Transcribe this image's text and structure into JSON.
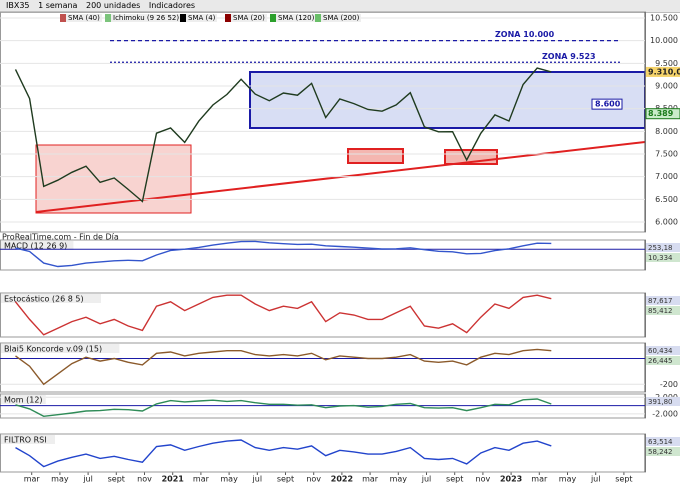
{
  "toolbar": {
    "symbol": "IBX35",
    "period": "1 semana",
    "units": "200 unidades",
    "indicators": "Indicadores",
    "legend": [
      {
        "name": "SMA (40)",
        "color": "#c0504d"
      },
      {
        "name": "Ichimoku (9 26 52)",
        "color": "#7cc47c"
      },
      {
        "name": "SMA (4)",
        "color": "#000000"
      },
      {
        "name": "SMA (20)",
        "color": "#8b0000"
      },
      {
        "name": "SMA (120)",
        "color": "#2ca02c"
      },
      {
        "name": "SMA (200)",
        "color": "#6abf69"
      }
    ]
  },
  "chart_data": [
    {
      "type": "line",
      "source": "ProRealTime.com - Fin de Día",
      "x": [
        "2020-01",
        "2020-02",
        "2020-03",
        "2020-04",
        "2020-05",
        "2020-06",
        "2020-07",
        "2020-08",
        "2020-09",
        "2020-10",
        "2020-11",
        "2020-12",
        "2021-01",
        "2021-02",
        "2021-03",
        "2021-04",
        "2021-05",
        "2021-06",
        "2021-07",
        "2021-08",
        "2021-09",
        "2021-10",
        "2021-11",
        "2021-12",
        "2022-01",
        "2022-02",
        "2022-03",
        "2022-04",
        "2022-05",
        "2022-06",
        "2022-07",
        "2022-08",
        "2022-09",
        "2022-10",
        "2022-11",
        "2022-12",
        "2023-01",
        "2023-02",
        "2023-03"
      ],
      "series": [
        {
          "name": "Precio",
          "color": "#1f3b1f",
          "values": [
            9367,
            8723,
            6785,
            6922,
            7096,
            7231,
            6877,
            6970,
            6717,
            6452,
            7960,
            8074,
            7757,
            8225,
            8580,
            8815,
            9148,
            8821,
            8675,
            8846,
            8796,
            9057,
            8306,
            8714,
            8612,
            8482,
            8445,
            8584,
            8852,
            8099,
            7989,
            7993,
            7367,
            7956,
            8363,
            8229,
            9034,
            9394,
            9310
          ]
        }
      ],
      "ylim": [
        5780,
        10632
      ],
      "yticks": [
        {
          "value": 6000,
          "label": "6.000"
        },
        {
          "value": 6500,
          "label": "6.500"
        },
        {
          "value": 7000,
          "label": "7.000"
        },
        {
          "value": 7500,
          "label": "7.500"
        },
        {
          "value": 8000,
          "label": "8.000"
        },
        {
          "value": 8500,
          "label": "8.500"
        },
        {
          "value": 9000,
          "label": "9.000"
        },
        {
          "value": 9500,
          "label": "9.500"
        },
        {
          "value": 10000,
          "label": "10.000"
        },
        {
          "value": 10500,
          "label": "10.500"
        }
      ],
      "xticks": [
        {
          "value": "2020-03",
          "label": "mar"
        },
        {
          "value": "2020-05",
          "label": "may"
        },
        {
          "value": "2020-07",
          "label": "jul"
        },
        {
          "value": "2020-09",
          "label": "sept"
        },
        {
          "value": "2020-11",
          "label": "nov"
        },
        {
          "value": "2021-01",
          "label": "2021"
        },
        {
          "value": "2021-03",
          "label": "mar"
        },
        {
          "value": "2021-05",
          "label": "may"
        },
        {
          "value": "2021-07",
          "label": "jul"
        },
        {
          "value": "2021-09",
          "label": "sept"
        },
        {
          "value": "2021-11",
          "label": "nov"
        },
        {
          "value": "2022-01",
          "label": "2022"
        },
        {
          "value": "2022-03",
          "label": "mar"
        },
        {
          "value": "2022-05",
          "label": "may"
        },
        {
          "value": "2022-07",
          "label": "jul"
        },
        {
          "value": "2022-09",
          "label": "sept"
        },
        {
          "value": "2022-11",
          "label": "nov"
        },
        {
          "value": "2023-01",
          "label": "2023"
        },
        {
          "value": "2023-03",
          "label": "mar"
        },
        {
          "value": "2023-05",
          "label": "may"
        },
        {
          "value": "2023-07",
          "label": "jul"
        },
        {
          "value": "2023-09",
          "label": "sept"
        }
      ],
      "annotations": [
        {
          "text": "ZONA 10.000",
          "y": 10000,
          "color": "#1a1aa6"
        },
        {
          "text": "ZONA 9.523",
          "y": 9523,
          "color": "#1a1aa6"
        },
        {
          "text": "8.600",
          "y": 8600,
          "color": "#1a1aa6"
        },
        {
          "text": "8.389",
          "y": 8389,
          "color": "#1a7a1a"
        },
        {
          "text": "9.310,0",
          "y": 9310,
          "color": "#c08000"
        }
      ]
    },
    {
      "type": "line",
      "title": "MACD (12 26 9)",
      "readouts": [
        "253,18",
        "10,334"
      ],
      "x": [
        "2020-01",
        "2020-02",
        "2020-03",
        "2020-04",
        "2020-05",
        "2020-06",
        "2020-07",
        "2020-08",
        "2020-09",
        "2020-10",
        "2020-11",
        "2020-12",
        "2021-01",
        "2021-02",
        "2021-03",
        "2021-04",
        "2021-05",
        "2021-06",
        "2021-07",
        "2021-08",
        "2021-09",
        "2021-10",
        "2021-11",
        "2021-12",
        "2022-01",
        "2022-02",
        "2022-03",
        "2022-04",
        "2022-05",
        "2022-06",
        "2022-07",
        "2022-08",
        "2022-09",
        "2022-10",
        "2022-11",
        "2022-12",
        "2023-01",
        "2023-02",
        "2023-03"
      ],
      "series": [
        {
          "name": "MACD",
          "color": "#3355cc",
          "values": [
            50,
            -100,
            -600,
            -750,
            -700,
            -600,
            -550,
            -500,
            -480,
            -500,
            -250,
            -50,
            0,
            80,
            180,
            260,
            330,
            340,
            280,
            240,
            210,
            220,
            150,
            120,
            90,
            50,
            10,
            20,
            60,
            -20,
            -90,
            -110,
            -200,
            -180,
            -60,
            20,
            150,
            260,
            253
          ]
        }
      ],
      "ylim": [
        -900,
        400
      ],
      "yticks": []
    },
    {
      "type": "line",
      "title": "Estocástico (26 8 5)",
      "readouts": [
        "87,617",
        "85,412"
      ],
      "x": [
        "2020-01",
        "2020-02",
        "2020-03",
        "2020-04",
        "2020-05",
        "2020-06",
        "2020-07",
        "2020-08",
        "2020-09",
        "2020-10",
        "2020-11",
        "2020-12",
        "2021-01",
        "2021-02",
        "2021-03",
        "2021-04",
        "2021-05",
        "2021-06",
        "2021-07",
        "2021-08",
        "2021-09",
        "2021-10",
        "2021-11",
        "2021-12",
        "2022-01",
        "2022-02",
        "2022-03",
        "2022-04",
        "2022-05",
        "2022-06",
        "2022-07",
        "2022-08",
        "2022-09",
        "2022-10",
        "2022-11",
        "2022-12",
        "2023-01",
        "2023-02",
        "2023-03"
      ],
      "series": [
        {
          "name": "Estocástico",
          "color": "#cc3333",
          "values": [
            80,
            40,
            5,
            20,
            35,
            45,
            30,
            40,
            25,
            15,
            70,
            80,
            60,
            75,
            90,
            95,
            95,
            75,
            60,
            70,
            65,
            80,
            35,
            55,
            50,
            40,
            40,
            55,
            70,
            25,
            20,
            30,
            10,
            45,
            75,
            65,
            90,
            95,
            87
          ]
        }
      ],
      "ylim": [
        0,
        100
      ],
      "yticks": []
    },
    {
      "type": "line",
      "title": "Blai5 Koncorde v.09 (15)",
      "readouts": [
        "60,434",
        "26,445"
      ],
      "x": [
        "2020-01",
        "2020-02",
        "2020-03",
        "2020-04",
        "2020-05",
        "2020-06",
        "2020-07",
        "2020-08",
        "2020-09",
        "2020-10",
        "2020-11",
        "2020-12",
        "2021-01",
        "2021-02",
        "2021-03",
        "2021-04",
        "2021-05",
        "2021-06",
        "2021-07",
        "2021-08",
        "2021-09",
        "2021-10",
        "2021-11",
        "2021-12",
        "2022-01",
        "2022-02",
        "2022-03",
        "2022-04",
        "2022-05",
        "2022-06",
        "2022-07",
        "2022-08",
        "2022-09",
        "2022-10",
        "2022-11",
        "2022-12",
        "2023-01",
        "2023-02",
        "2023-03"
      ],
      "series": [
        {
          "name": "Koncorde",
          "color": "#8b5a2b",
          "values": [
            20,
            -60,
            -200,
            -120,
            -40,
            10,
            -20,
            0,
            -30,
            -50,
            40,
            50,
            20,
            40,
            50,
            60,
            60,
            30,
            20,
            30,
            20,
            40,
            -10,
            20,
            10,
            0,
            0,
            10,
            30,
            -20,
            -30,
            -20,
            -50,
            10,
            40,
            30,
            60,
            70,
            60
          ]
        }
      ],
      "ylim": [
        -260,
        120
      ],
      "yticks": [
        -200
      ]
    },
    {
      "type": "line",
      "title": "Mom (12)",
      "readouts": [
        "391,80"
      ],
      "x": [
        "2020-01",
        "2020-02",
        "2020-03",
        "2020-04",
        "2020-05",
        "2020-06",
        "2020-07",
        "2020-08",
        "2020-09",
        "2020-10",
        "2020-11",
        "2020-12",
        "2021-01",
        "2021-02",
        "2021-03",
        "2021-04",
        "2021-05",
        "2021-06",
        "2021-07",
        "2021-08",
        "2021-09",
        "2021-10",
        "2021-11",
        "2021-12",
        "2022-01",
        "2022-02",
        "2022-03",
        "2022-04",
        "2022-05",
        "2022-06",
        "2022-07",
        "2022-08",
        "2022-09",
        "2022-10",
        "2022-11",
        "2022-12",
        "2023-01",
        "2023-02",
        "2023-03"
      ],
      "series": [
        {
          "name": "Mom",
          "color": "#2e8b57",
          "values": [
            200,
            -800,
            -2600,
            -2200,
            -1800,
            -1300,
            -1200,
            -900,
            -1000,
            -1300,
            400,
            1200,
            900,
            1100,
            1300,
            1000,
            1200,
            700,
            300,
            300,
            100,
            200,
            -500,
            -100,
            0,
            -400,
            -200,
            300,
            500,
            -500,
            -600,
            -500,
            -1200,
            -500,
            300,
            200,
            1400,
            1600,
            392
          ]
        }
      ],
      "ylim": [
        -3000,
        2800
      ],
      "yticks": [
        {
          "value": 2000,
          "label": "2.000"
        },
        {
          "value": -2000,
          "label": "-2.000"
        }
      ]
    },
    {
      "type": "line",
      "title": "FILTRO RSI",
      "readouts": [
        "63,514",
        "58,242"
      ],
      "x": [
        "2020-01",
        "2020-02",
        "2020-03",
        "2020-04",
        "2020-05",
        "2020-06",
        "2020-07",
        "2020-08",
        "2020-09",
        "2020-10",
        "2020-11",
        "2020-12",
        "2021-01",
        "2021-02",
        "2021-03",
        "2021-04",
        "2021-05",
        "2021-06",
        "2021-07",
        "2021-08",
        "2021-09",
        "2021-10",
        "2021-11",
        "2021-12",
        "2022-01",
        "2022-02",
        "2022-03",
        "2022-04",
        "2022-05",
        "2022-06",
        "2022-07",
        "2022-08",
        "2022-09",
        "2022-10",
        "2022-11",
        "2022-12",
        "2023-01",
        "2023-02",
        "2023-03"
      ],
      "series": [
        {
          "name": "RSI",
          "color": "#2244cc",
          "values": [
            60,
            45,
            25,
            35,
            42,
            48,
            40,
            44,
            38,
            33,
            62,
            65,
            55,
            62,
            68,
            72,
            74,
            60,
            55,
            60,
            57,
            63,
            45,
            55,
            52,
            48,
            48,
            53,
            60,
            40,
            38,
            40,
            30,
            50,
            60,
            55,
            68,
            72,
            63
          ]
        }
      ],
      "ylim": [
        15,
        85
      ],
      "yticks": []
    }
  ]
}
